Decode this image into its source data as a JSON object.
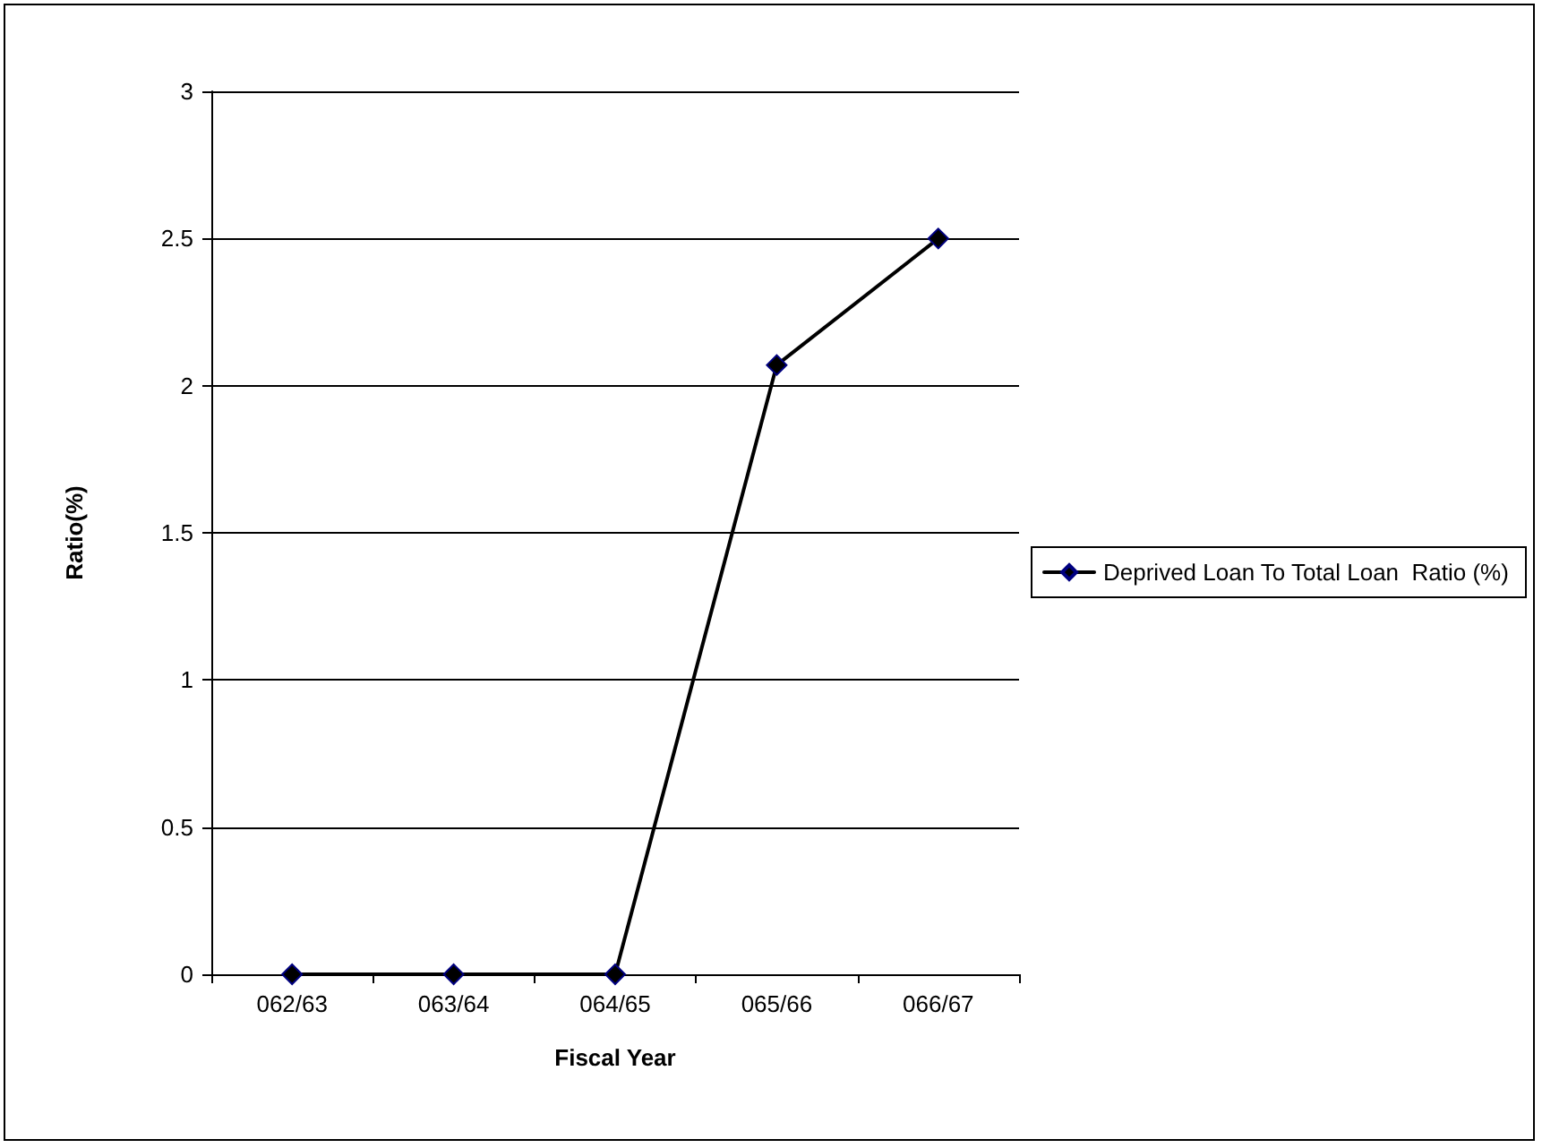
{
  "chart_data": {
    "type": "line",
    "xlabel": "Fiscal Year",
    "ylabel": "Ratio(%)",
    "categories": [
      "062/63",
      "063/64",
      "064/65",
      "065/66",
      "066/67"
    ],
    "series": [
      {
        "name": "Deprived Loan To Total Loan  Ratio (%)",
        "color": "#000000",
        "values": [
          0,
          0,
          0,
          2.07,
          2.5
        ]
      }
    ],
    "ylim": [
      0,
      3
    ],
    "yticks": [
      0,
      0.5,
      1,
      1.5,
      2,
      2.5,
      3
    ],
    "grid": "y",
    "legend": "right",
    "marker": "diamond",
    "line_style": "solid"
  }
}
